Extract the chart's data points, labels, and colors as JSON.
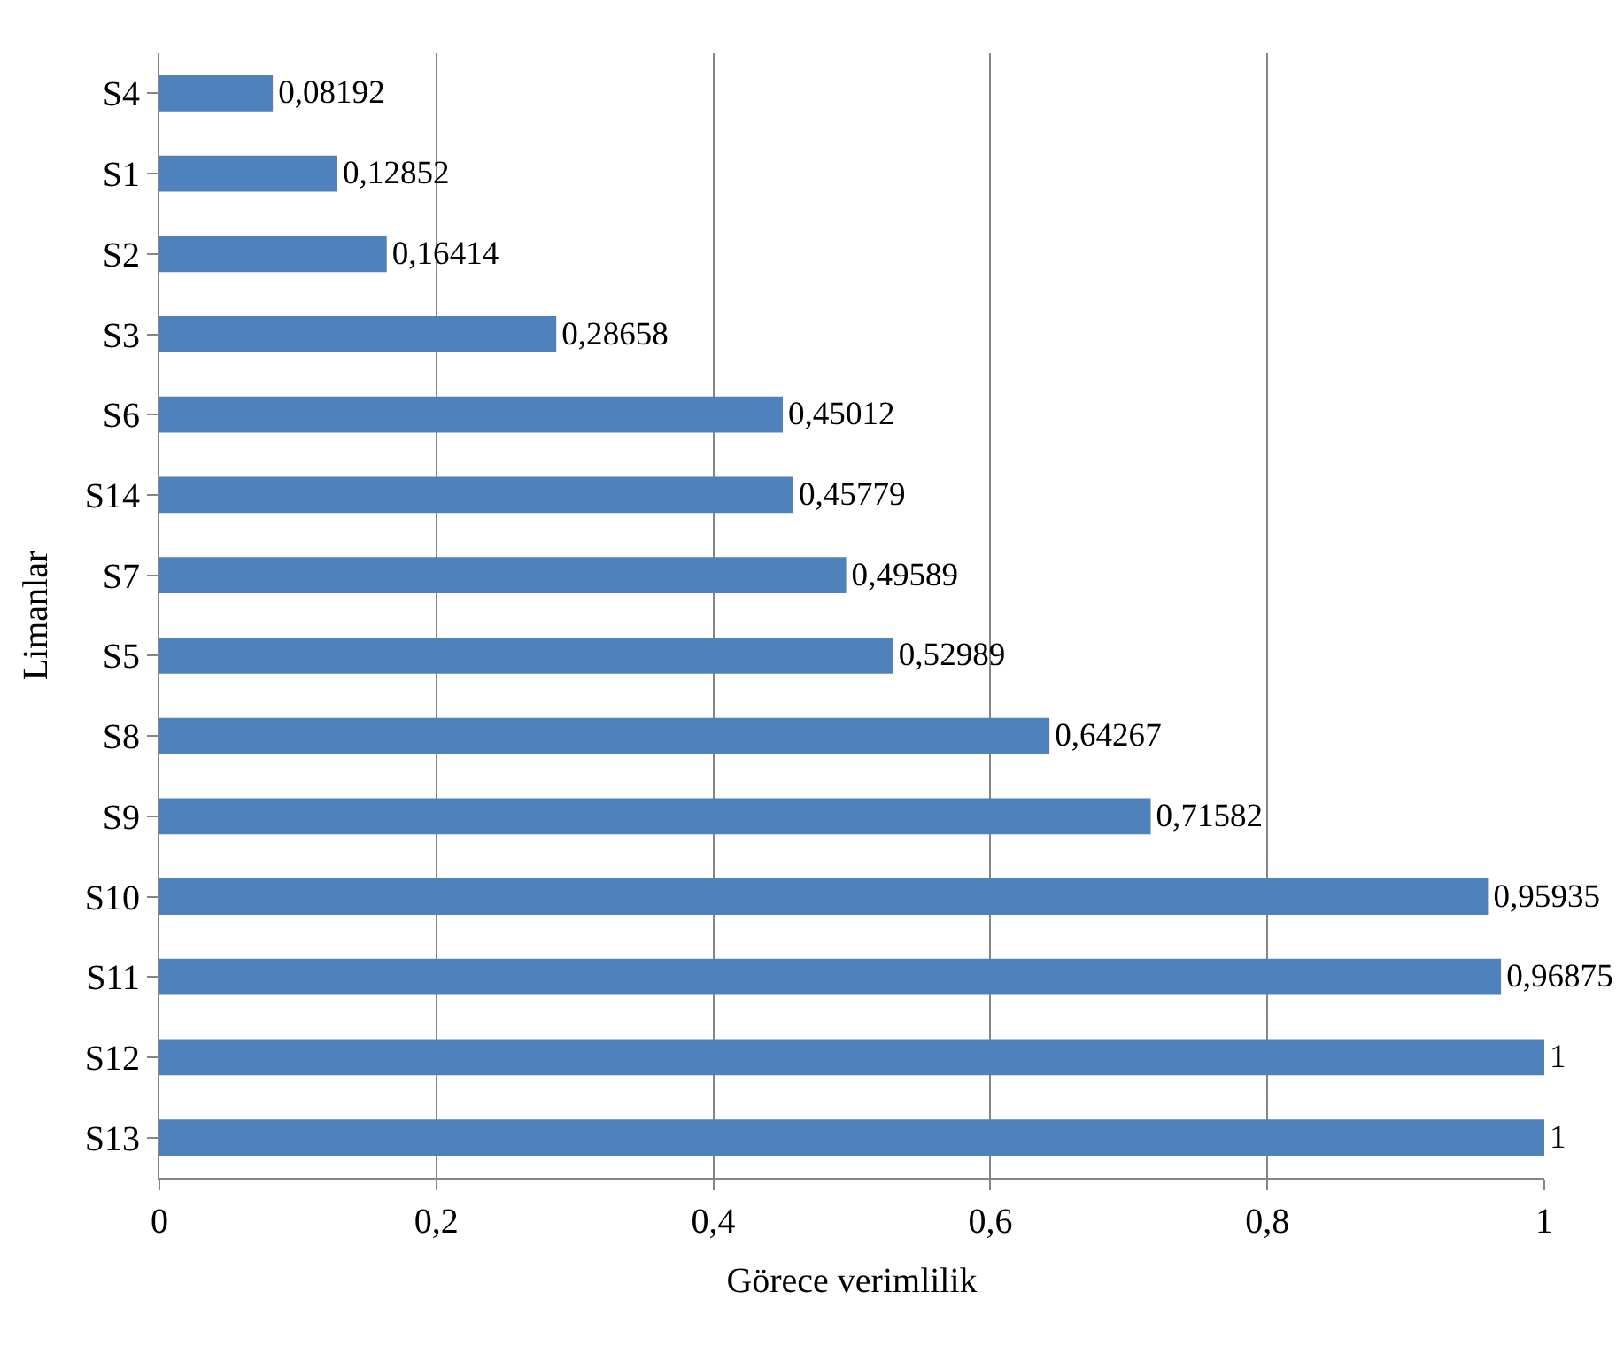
{
  "chart_data": {
    "type": "bar",
    "orientation": "horizontal",
    "xlabel": "Görece verimlilik",
    "ylabel": "Limanlar",
    "categories": [
      "S4",
      "S1",
      "S2",
      "S3",
      "S6",
      "S14",
      "S7",
      "S5",
      "S8",
      "S9",
      "S10",
      "S11",
      "S12",
      "S13"
    ],
    "values": [
      0.08192,
      0.12852,
      0.16414,
      0.28658,
      0.45012,
      0.45779,
      0.49589,
      0.52989,
      0.64267,
      0.71582,
      0.95935,
      0.96875,
      1,
      1
    ],
    "value_labels": [
      "0,08192",
      "0,12852",
      "0,16414",
      "0,28658",
      "0,45012",
      "0,45779",
      "0,49589",
      "0,52989",
      "0,64267",
      "0,71582",
      "0,95935",
      "0,96875",
      "1",
      "1"
    ],
    "color": "#4f81bd",
    "xlim": [
      0,
      1
    ],
    "xticks": [
      0,
      {
        "value": 0.2,
        "label": "0,2"
      },
      {
        "value": 0.4,
        "label": "0,4"
      },
      {
        "value": 0.6,
        "label": "0,6"
      },
      {
        "value": 0.8,
        "label": "0,8"
      },
      1
    ],
    "grid": "x",
    "legend": false
  }
}
